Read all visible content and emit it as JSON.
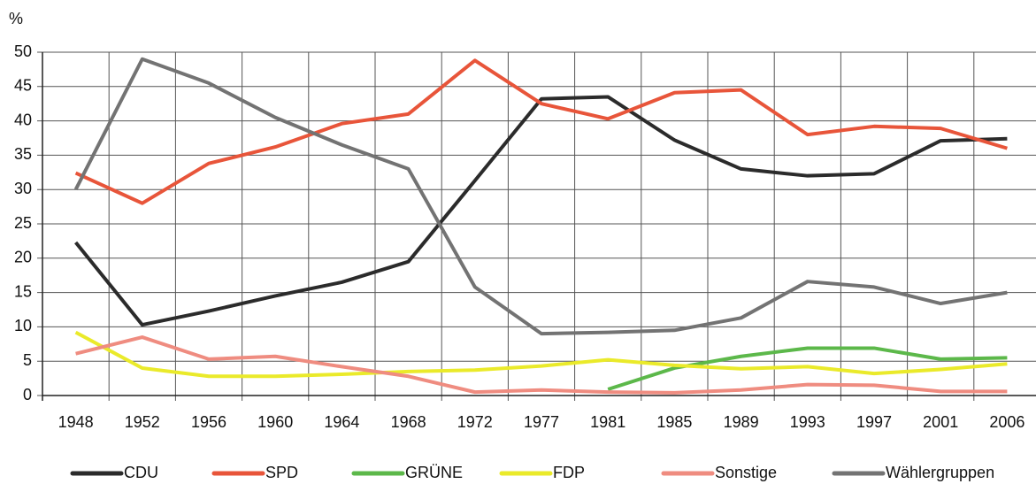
{
  "chart_data": {
    "type": "line",
    "ylabel": "%",
    "categories": [
      "1948",
      "1952",
      "1956",
      "1960",
      "1964",
      "1968",
      "1972",
      "1977",
      "1981",
      "1985",
      "1989",
      "1993",
      "1997",
      "2001",
      "2006"
    ],
    "series": [
      {
        "name": "CDU",
        "color": "#2b2b2b",
        "values": [
          22.3,
          10.3,
          12.3,
          14.5,
          16.5,
          19.5,
          31.3,
          43.2,
          43.5,
          37.2,
          33,
          32,
          32.3,
          37.1,
          37.4
        ]
      },
      {
        "name": "SPD",
        "color": "#e8553a",
        "values": [
          32.4,
          28,
          33.8,
          36.2,
          39.6,
          41,
          48.8,
          42.5,
          40.3,
          44.1,
          44.5,
          38,
          39.2,
          38.9,
          36
        ]
      },
      {
        "name": "GRÜNE",
        "color": "#5cb84a",
        "values": [
          null,
          null,
          null,
          null,
          null,
          null,
          null,
          null,
          0.9,
          4,
          5.7,
          6.9,
          6.9,
          5.3,
          5.5
        ]
      },
      {
        "name": "FDP",
        "color": "#eaea2a",
        "values": [
          9.2,
          4,
          2.8,
          2.8,
          3.1,
          3.5,
          3.7,
          4.3,
          5.2,
          4.4,
          3.9,
          4.2,
          3.2,
          3.8,
          4.6
        ]
      },
      {
        "name": "Sonstige",
        "color": "#ef8c80",
        "values": [
          6.1,
          8.5,
          5.3,
          5.7,
          4.2,
          2.8,
          0.5,
          0.8,
          0.5,
          0.4,
          0.8,
          1.6,
          1.5,
          0.6,
          0.6
        ]
      },
      {
        "name": "Wählergruppen",
        "color": "#737373",
        "values": [
          30,
          49,
          45.5,
          40.5,
          36.5,
          33,
          15.8,
          9,
          9.2,
          9.5,
          11.3,
          16.6,
          15.8,
          13.4,
          15
        ]
      }
    ],
    "ylim": [
      0,
      50
    ],
    "yticks": [
      0,
      5,
      10,
      15,
      20,
      25,
      30,
      35,
      40,
      45,
      50
    ],
    "grid": true,
    "legend": "bottom"
  }
}
